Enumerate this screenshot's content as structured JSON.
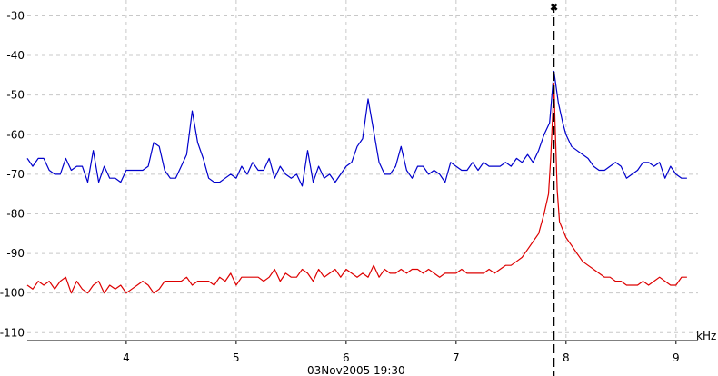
{
  "chart_data": {
    "type": "line",
    "xlabel": "kHz",
    "timestamp": "03Nov2005 19:30",
    "xlim": [
      3.1,
      9.2
    ],
    "ylim": [
      -112,
      -26
    ],
    "x_ticks": [
      4,
      5,
      6,
      7,
      8,
      9
    ],
    "y_ticks": [
      -30,
      -40,
      -50,
      -60,
      -70,
      -80,
      -90,
      -100,
      -110
    ],
    "grid": true,
    "marker": {
      "x": 7.89,
      "symbol": "✖"
    },
    "series": [
      {
        "color": "#0000cc",
        "x": [
          3.1,
          3.15,
          3.2,
          3.25,
          3.3,
          3.35,
          3.4,
          3.45,
          3.5,
          3.55,
          3.6,
          3.65,
          3.7,
          3.75,
          3.8,
          3.85,
          3.9,
          3.95,
          4.0,
          4.05,
          4.1,
          4.15,
          4.2,
          4.25,
          4.3,
          4.35,
          4.4,
          4.45,
          4.5,
          4.55,
          4.6,
          4.65,
          4.7,
          4.75,
          4.8,
          4.85,
          4.9,
          4.95,
          5.0,
          5.05,
          5.1,
          5.15,
          5.2,
          5.25,
          5.3,
          5.35,
          5.4,
          5.45,
          5.5,
          5.55,
          5.6,
          5.65,
          5.7,
          5.75,
          5.8,
          5.85,
          5.9,
          5.95,
          6.0,
          6.05,
          6.1,
          6.15,
          6.2,
          6.25,
          6.3,
          6.35,
          6.4,
          6.45,
          6.5,
          6.55,
          6.6,
          6.65,
          6.7,
          6.75,
          6.8,
          6.85,
          6.9,
          6.95,
          7.0,
          7.05,
          7.1,
          7.15,
          7.2,
          7.25,
          7.3,
          7.35,
          7.4,
          7.45,
          7.5,
          7.55,
          7.6,
          7.65,
          7.7,
          7.75,
          7.8,
          7.85,
          7.89,
          7.93,
          7.97,
          8.0,
          8.05,
          8.1,
          8.15,
          8.2,
          8.25,
          8.3,
          8.35,
          8.4,
          8.45,
          8.5,
          8.55,
          8.6,
          8.65,
          8.7,
          8.75,
          8.8,
          8.85,
          8.9,
          8.95,
          9.0,
          9.05,
          9.1
        ],
        "y": [
          -66,
          -68,
          -66,
          -66,
          -69,
          -70,
          -70,
          -66,
          -69,
          -68,
          -68,
          -72,
          -64,
          -72,
          -68,
          -71,
          -71,
          -72,
          -69,
          -69,
          -69,
          -69,
          -68,
          -62,
          -63,
          -69,
          -71,
          -71,
          -68,
          -65,
          -54,
          -62,
          -66,
          -71,
          -72,
          -72,
          -71,
          -70,
          -71,
          -68,
          -70,
          -67,
          -69,
          -69,
          -66,
          -71,
          -68,
          -70,
          -71,
          -70,
          -73,
          -64,
          -72,
          -68,
          -71,
          -70,
          -72,
          -70,
          -68,
          -67,
          -63,
          -61,
          -51,
          -59,
          -67,
          -70,
          -70,
          -68,
          -63,
          -69,
          -71,
          -68,
          -68,
          -70,
          -69,
          -70,
          -72,
          -67,
          -68,
          -69,
          -69,
          -67,
          -69,
          -67,
          -68,
          -68,
          -68,
          -67,
          -68,
          -66,
          -67,
          -65,
          -67,
          -64,
          -60,
          -57,
          -44,
          -52,
          -57,
          -60,
          -63,
          -64,
          -65,
          -66,
          -68,
          -69,
          -69,
          -68,
          -67,
          -68,
          -71,
          -70,
          -69,
          -67,
          -67,
          -68,
          -67,
          -71,
          -68,
          -70,
          -71,
          -71
        ]
      },
      {
        "color": "#dd0000",
        "x": [
          3.1,
          3.15,
          3.2,
          3.25,
          3.3,
          3.35,
          3.4,
          3.45,
          3.5,
          3.55,
          3.6,
          3.65,
          3.7,
          3.75,
          3.8,
          3.85,
          3.9,
          3.95,
          4.0,
          4.05,
          4.1,
          4.15,
          4.2,
          4.25,
          4.3,
          4.35,
          4.4,
          4.45,
          4.5,
          4.55,
          4.6,
          4.65,
          4.7,
          4.75,
          4.8,
          4.85,
          4.9,
          4.95,
          5.0,
          5.05,
          5.1,
          5.15,
          5.2,
          5.25,
          5.3,
          5.35,
          5.4,
          5.45,
          5.5,
          5.55,
          5.6,
          5.65,
          5.7,
          5.75,
          5.8,
          5.85,
          5.9,
          5.95,
          6.0,
          6.05,
          6.1,
          6.15,
          6.2,
          6.25,
          6.3,
          6.35,
          6.4,
          6.45,
          6.5,
          6.55,
          6.6,
          6.65,
          6.7,
          6.75,
          6.8,
          6.85,
          6.9,
          6.95,
          7.0,
          7.05,
          7.1,
          7.15,
          7.2,
          7.25,
          7.3,
          7.35,
          7.4,
          7.45,
          7.5,
          7.55,
          7.6,
          7.65,
          7.7,
          7.75,
          7.8,
          7.84,
          7.86,
          7.88,
          7.89,
          7.9,
          7.92,
          7.94,
          7.97,
          8.0,
          8.05,
          8.1,
          8.15,
          8.2,
          8.25,
          8.3,
          8.35,
          8.4,
          8.45,
          8.5,
          8.55,
          8.6,
          8.65,
          8.7,
          8.75,
          8.8,
          8.85,
          8.9,
          8.95,
          9.0,
          9.05,
          9.1
        ],
        "y": [
          -98,
          -99,
          -97,
          -98,
          -97,
          -99,
          -97,
          -96,
          -100,
          -97,
          -99,
          -100,
          -98,
          -97,
          -100,
          -98,
          -99,
          -98,
          -100,
          -99,
          -98,
          -97,
          -98,
          -100,
          -99,
          -97,
          -97,
          -97,
          -97,
          -96,
          -98,
          -97,
          -97,
          -97,
          -98,
          -96,
          -97,
          -95,
          -98,
          -96,
          -96,
          -96,
          -96,
          -97,
          -96,
          -94,
          -97,
          -95,
          -96,
          -96,
          -94,
          -95,
          -97,
          -94,
          -96,
          -95,
          -94,
          -96,
          -94,
          -95,
          -96,
          -95,
          -96,
          -93,
          -96,
          -94,
          -95,
          -95,
          -94,
          -95,
          -94,
          -94,
          -95,
          -94,
          -95,
          -96,
          -95,
          -95,
          -95,
          -94,
          -95,
          -95,
          -95,
          -95,
          -94,
          -95,
          -94,
          -93,
          -93,
          -92,
          -91,
          -89,
          -87,
          -85,
          -80,
          -75,
          -66,
          -54,
          -47,
          -57,
          -74,
          -82,
          -84,
          -86,
          -88,
          -90,
          -92,
          -93,
          -94,
          -95,
          -96,
          -96,
          -97,
          -97,
          -98,
          -98,
          -98,
          -97,
          -98,
          -97,
          -96,
          -97,
          -98,
          -98,
          -96,
          -96
        ]
      }
    ]
  }
}
